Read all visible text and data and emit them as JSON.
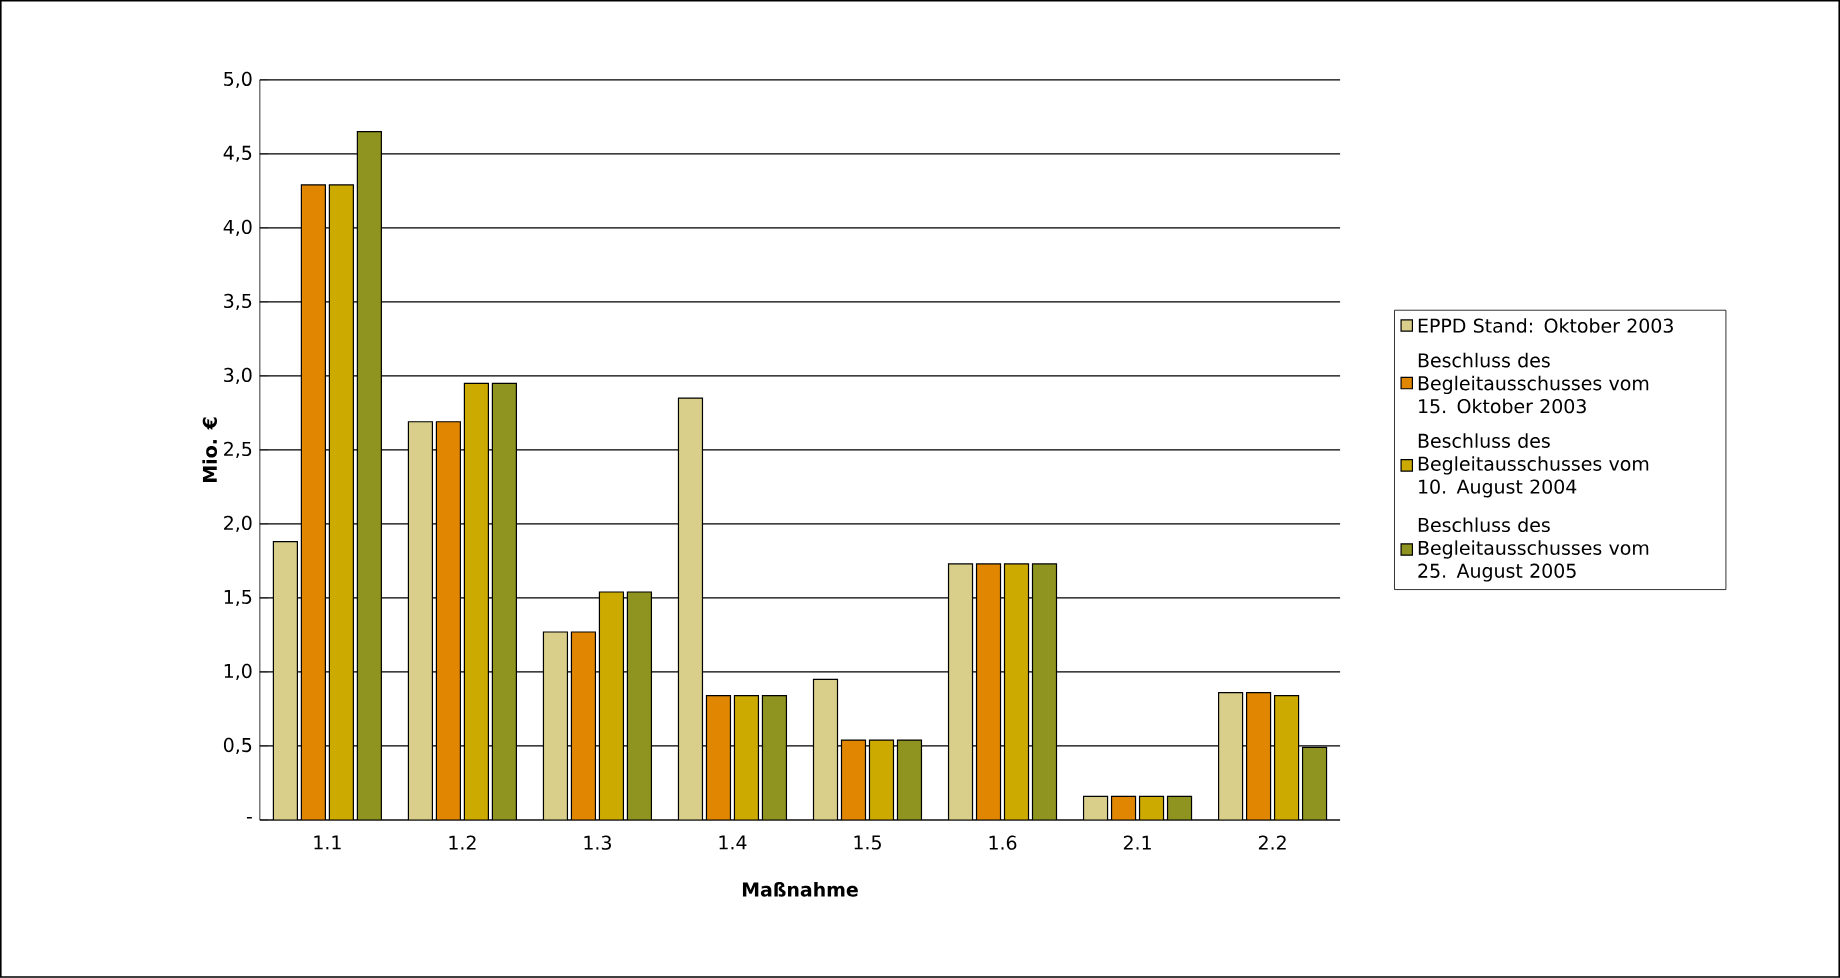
{
  "chart_data": {
    "type": "bar",
    "xlabel": "Maßnahme",
    "ylabel": "Mio. €",
    "categories": [
      "1.1",
      "1.2",
      "1.3",
      "1.4",
      "1.5",
      "1.6",
      "2.1",
      "2.2"
    ],
    "series": [
      {
        "name": "EPPD Stand: Oktober 2003",
        "color": "#d9cf8a",
        "values": [
          1.88,
          2.69,
          1.27,
          2.85,
          0.95,
          1.73,
          0.16,
          0.86
        ]
      },
      {
        "name": "Beschluss des Begleitausschusses vom 15. Oktober 2003",
        "color": "#e08600",
        "values": [
          4.29,
          2.69,
          1.27,
          0.84,
          0.54,
          1.73,
          0.16,
          0.86
        ]
      },
      {
        "name": "Beschluss des Begleitausschusses vom 10. August 2004",
        "color": "#ccaa00",
        "values": [
          4.29,
          2.95,
          1.54,
          0.84,
          0.54,
          1.73,
          0.16,
          0.84
        ]
      },
      {
        "name": "Beschluss des Begleitausschusses vom 25. August 2005",
        "color": "#8f9420",
        "values": [
          4.65,
          2.95,
          1.54,
          0.84,
          0.54,
          1.73,
          0.16,
          0.49
        ]
      }
    ],
    "ylim": [
      0,
      5
    ],
    "yticks": [
      {
        "value": 0,
        "label": "-"
      },
      {
        "value": 0.5,
        "label": "0,5"
      },
      {
        "value": 1,
        "label": "1,0"
      },
      {
        "value": 1.5,
        "label": "1,5"
      },
      {
        "value": 2,
        "label": "2,0"
      },
      {
        "value": 2.5,
        "label": "2,5"
      },
      {
        "value": 3,
        "label": "3,0"
      },
      {
        "value": 3.5,
        "label": "3,5"
      },
      {
        "value": 4,
        "label": "4,0"
      },
      {
        "value": 4.5,
        "label": "4,5"
      },
      {
        "value": 5,
        "label": "5,0"
      }
    ],
    "grid": "y",
    "legend": "right"
  }
}
